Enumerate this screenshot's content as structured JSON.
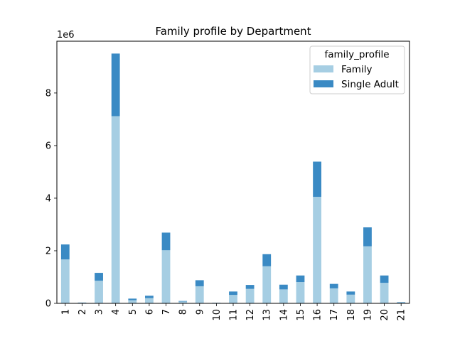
{
  "chart_data": {
    "type": "bar",
    "stacked": true,
    "title": "Family profile by Department",
    "xlabel": "",
    "ylabel": "",
    "y_offset_label": "1e6",
    "y_tick_values": [
      0,
      2,
      4,
      6,
      8
    ],
    "ylim": [
      0,
      9.97
    ],
    "categories": [
      "1",
      "2",
      "3",
      "4",
      "5",
      "6",
      "7",
      "8",
      "9",
      "10",
      "11",
      "12",
      "13",
      "14",
      "15",
      "16",
      "17",
      "18",
      "19",
      "20",
      "21"
    ],
    "series": [
      {
        "name": "Family",
        "color": "#a6cee3",
        "values": [
          1.67,
          0.02,
          0.86,
          7.12,
          0.12,
          0.2,
          2.02,
          0.07,
          0.65,
          0.01,
          0.32,
          0.55,
          1.41,
          0.53,
          0.81,
          4.05,
          0.57,
          0.33,
          2.17,
          0.78,
          0.04
        ]
      },
      {
        "name": "Single Adult",
        "color": "#3a8ac4",
        "values": [
          0.57,
          0.01,
          0.3,
          2.38,
          0.06,
          0.09,
          0.67,
          0.02,
          0.23,
          0.01,
          0.13,
          0.15,
          0.46,
          0.18,
          0.25,
          1.34,
          0.17,
          0.12,
          0.72,
          0.28,
          0.01
        ]
      }
    ],
    "legend": {
      "title": "family_profile",
      "placement": "top-right"
    },
    "grid": false
  }
}
